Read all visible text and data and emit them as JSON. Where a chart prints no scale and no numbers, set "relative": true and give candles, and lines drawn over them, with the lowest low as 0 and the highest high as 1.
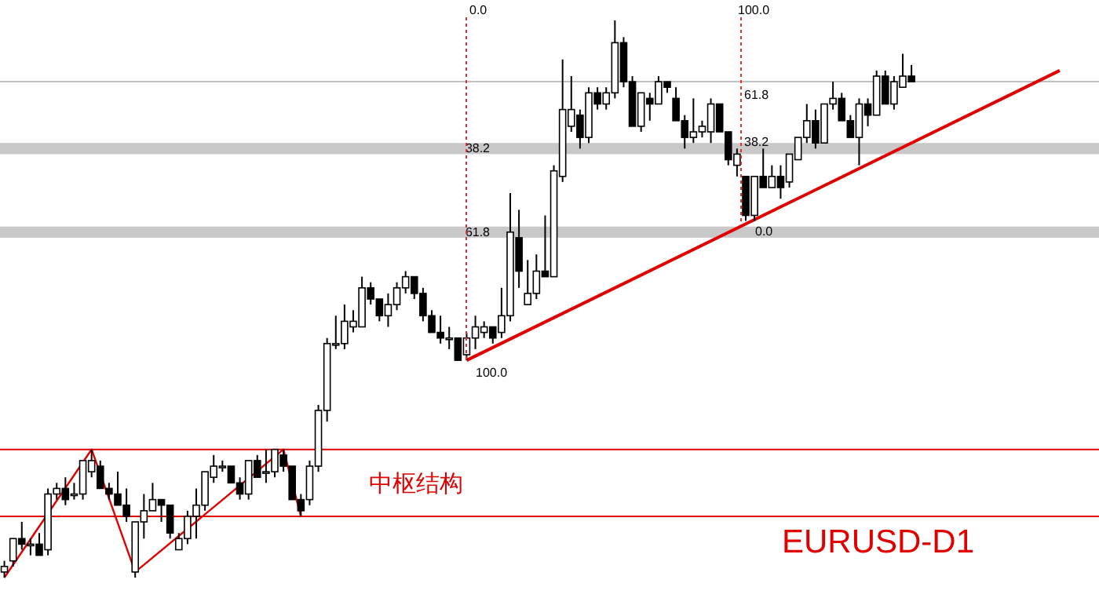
{
  "chart_data": {
    "type": "candlestick",
    "relative": true,
    "tick_labels": false,
    "categories": [
      null,
      null,
      null,
      null,
      null,
      null,
      null,
      null,
      null,
      null,
      null,
      null,
      null,
      null,
      null,
      null,
      null,
      null,
      null,
      null,
      null,
      null,
      null,
      null,
      null,
      null,
      null,
      null,
      null,
      null,
      null,
      null,
      null,
      null,
      null,
      null,
      null,
      null,
      null,
      null,
      null,
      null,
      null,
      null,
      null,
      null,
      null,
      null,
      null,
      null,
      null,
      null,
      null,
      null,
      null,
      null,
      null,
      null,
      null,
      null,
      null,
      null,
      null,
      null,
      null,
      null,
      null,
      null,
      null,
      null,
      null,
      null,
      null,
      null,
      null,
      null,
      null,
      null,
      null,
      null,
      null,
      null,
      null,
      null,
      null,
      null,
      null,
      null,
      null,
      null,
      null,
      null,
      null,
      null,
      null,
      null,
      null,
      null,
      null,
      null,
      null,
      null,
      null,
      null,
      null,
      null,
      null,
      null,
      null,
      null,
      null,
      null,
      null,
      null,
      null,
      null,
      null,
      null,
      null,
      null,
      null,
      null
    ],
    "ohlc": [
      [
        0.01,
        0.03,
        0,
        0.02
      ],
      [
        0.03,
        0.07,
        0.02,
        0.07
      ],
      [
        0.07,
        0.1,
        0.05,
        0.06
      ],
      [
        0.06,
        0.07,
        0.04,
        0.06
      ],
      [
        0.06,
        0.08,
        0.04,
        0.04
      ],
      [
        0.05,
        0.16,
        0.04,
        0.15
      ],
      [
        0.15,
        0.17,
        0.14,
        0.16
      ],
      [
        0.16,
        0.18,
        0.13,
        0.14
      ],
      [
        0.15,
        0.17,
        0.14,
        0.15
      ],
      [
        0.15,
        0.21,
        0.14,
        0.21
      ],
      [
        0.19,
        0.23,
        0.18,
        0.21
      ],
      [
        0.2,
        0.21,
        0.16,
        0.16
      ],
      [
        0.16,
        0.17,
        0.14,
        0.15
      ],
      [
        0.15,
        0.19,
        0.13,
        0.13
      ],
      [
        0.13,
        0.16,
        0.1,
        0.11
      ],
      [
        0.01,
        0.1,
        0,
        0.1
      ],
      [
        0.1,
        0.15,
        0.07,
        0.12
      ],
      [
        0.12,
        0.17,
        0.12,
        0.14
      ],
      [
        0.14,
        0.14,
        0.1,
        0.13
      ],
      [
        0.13,
        0.13,
        0.07,
        0.08
      ],
      [
        0.05,
        0.08,
        0.05,
        0.07
      ],
      [
        0.07,
        0.12,
        0.06,
        0.11
      ],
      [
        0.11,
        0.16,
        0.07,
        0.13
      ],
      [
        0.13,
        0.19,
        0.12,
        0.19
      ],
      [
        0.18,
        0.22,
        0.17,
        0.2
      ],
      [
        0.2,
        0.21,
        0.19,
        0.2
      ],
      [
        0.2,
        0.2,
        0.17,
        0.17
      ],
      [
        0.17,
        0.18,
        0.14,
        0.15
      ],
      [
        0.15,
        0.21,
        0.14,
        0.21
      ],
      [
        0.21,
        0.22,
        0.18,
        0.18
      ],
      [
        0.19,
        0.23,
        0.17,
        0.19
      ],
      [
        0.19,
        0.23,
        0.18,
        0.23
      ],
      [
        0.22,
        0.23,
        0.19,
        0.2
      ],
      [
        0.2,
        0.2,
        0.14,
        0.14
      ],
      [
        0.14,
        0.15,
        0.11,
        0.12
      ],
      [
        0.14,
        0.21,
        0.13,
        0.2
      ],
      [
        0.2,
        0.31,
        0.19,
        0.3
      ],
      [
        0.3,
        0.43,
        0.28,
        0.42
      ],
      [
        0.42,
        0.47,
        0.41,
        0.42
      ],
      [
        0.42,
        0.49,
        0.41,
        0.46
      ],
      [
        0.45,
        0.48,
        0.44,
        0.46
      ],
      [
        0.45,
        0.54,
        0.45,
        0.52
      ],
      [
        0.52,
        0.53,
        0.49,
        0.5
      ],
      [
        0.5,
        0.5,
        0.46,
        0.47
      ],
      [
        0.47,
        0.51,
        0.45,
        0.49
      ],
      [
        0.49,
        0.53,
        0.48,
        0.52
      ],
      [
        0.52,
        0.55,
        0.51,
        0.54
      ],
      [
        0.54,
        0.54,
        0.5,
        0.51
      ],
      [
        0.51,
        0.52,
        0.46,
        0.47
      ],
      [
        0.47,
        0.48,
        0.44,
        0.44
      ],
      [
        0.44,
        0.47,
        0.42,
        0.43
      ],
      [
        0.43,
        0.45,
        0.41,
        0.43
      ],
      [
        0.43,
        0.43,
        0.39,
        0.39
      ],
      [
        0.4,
        0.44,
        0.39,
        0.43
      ],
      [
        0.43,
        0.47,
        0.41,
        0.45
      ],
      [
        0.44,
        0.46,
        0.43,
        0.45
      ],
      [
        0.45,
        0.45,
        0.42,
        0.43
      ],
      [
        0.44,
        0.52,
        0.43,
        0.47
      ],
      [
        0.47,
        0.69,
        0.46,
        0.62
      ],
      [
        0.61,
        0.66,
        0.52,
        0.55
      ],
      [
        0.49,
        0.57,
        0.49,
        0.51
      ],
      [
        0.51,
        0.58,
        0.5,
        0.55
      ],
      [
        0.55,
        0.65,
        0.54,
        0.54
      ],
      [
        0.54,
        0.74,
        0.54,
        0.73
      ],
      [
        0.72,
        0.93,
        0.71,
        0.84
      ],
      [
        0.81,
        0.9,
        0.8,
        0.84
      ],
      [
        0.83,
        0.84,
        0.77,
        0.79
      ],
      [
        0.79,
        0.88,
        0.78,
        0.87
      ],
      [
        0.87,
        0.88,
        0.84,
        0.85
      ],
      [
        0.85,
        0.88,
        0.84,
        0.87
      ],
      [
        0.87,
        1,
        0.86,
        0.96
      ],
      [
        0.96,
        0.97,
        0.88,
        0.89
      ],
      [
        0.89,
        0.9,
        0.81,
        0.81
      ],
      [
        0.81,
        0.87,
        0.8,
        0.87
      ],
      [
        0.86,
        0.87,
        0.82,
        0.85
      ],
      [
        0.85,
        0.9,
        0.85,
        0.89
      ],
      [
        0.89,
        0.89,
        0.87,
        0.88
      ],
      [
        0.86,
        0.88,
        0.82,
        0.82
      ],
      [
        0.82,
        0.83,
        0.77,
        0.79
      ],
      [
        0.79,
        0.86,
        0.78,
        0.8
      ],
      [
        0.8,
        0.82,
        0.79,
        0.81
      ],
      [
        0.8,
        0.86,
        0.78,
        0.85
      ],
      [
        0.85,
        0.85,
        0.8,
        0.8
      ],
      [
        0.8,
        0.8,
        0.74,
        0.75
      ],
      [
        0.74,
        0.77,
        0.72,
        0.76
      ],
      [
        0.72,
        0.72,
        0.64,
        0.65
      ],
      [
        0.65,
        0.72,
        0.64,
        0.72
      ],
      [
        0.72,
        0.77,
        0.7,
        0.7
      ],
      [
        0.7,
        0.74,
        0.7,
        0.72
      ],
      [
        0.72,
        0.74,
        0.68,
        0.7
      ],
      [
        0.71,
        0.76,
        0.7,
        0.76
      ],
      [
        0.75,
        0.79,
        0.75,
        0.79
      ],
      [
        0.79,
        0.85,
        0.78,
        0.82
      ],
      [
        0.82,
        0.84,
        0.77,
        0.78
      ],
      [
        0.78,
        0.85,
        0.78,
        0.85
      ],
      [
        0.85,
        0.89,
        0.84,
        0.86
      ],
      [
        0.86,
        0.87,
        0.82,
        0.82
      ],
      [
        0.82,
        0.83,
        0.79,
        0.79
      ],
      [
        0.79,
        0.86,
        0.74,
        0.85
      ],
      [
        0.85,
        0.86,
        0.81,
        0.83
      ],
      [
        0.83,
        0.91,
        0.83,
        0.9
      ],
      [
        0.9,
        0.91,
        0.85,
        0.85
      ],
      [
        0.85,
        0.9,
        0.84,
        0.89
      ],
      [
        0.88,
        0.94,
        0.88,
        0.9
      ],
      [
        0.9,
        0.92,
        0.89,
        0.89
      ],
      null,
      null,
      null,
      null,
      null,
      null,
      null,
      null,
      null,
      null,
      null,
      null,
      null,
      null,
      null,
      null,
      null
    ],
    "series": [
      {
        "type": "line",
        "color": "#e00000",
        "values": [
          0,
          null,
          null,
          null,
          null,
          null,
          null,
          null,
          null,
          null,
          0.23,
          null,
          null,
          null,
          null,
          0.01,
          null,
          null,
          null,
          null,
          null,
          null,
          null,
          null,
          null,
          null,
          null,
          null,
          null,
          null,
          null,
          null,
          0.23,
          null,
          0.11,
          null,
          null,
          null,
          null,
          null,
          null,
          null,
          null,
          null,
          null,
          null,
          null,
          null,
          null,
          null,
          null,
          null,
          null,
          null,
          null,
          null,
          null,
          null,
          null,
          null,
          null,
          null,
          null,
          null,
          null,
          null,
          null,
          null,
          null,
          null,
          null,
          null,
          null,
          null,
          null,
          null,
          null,
          null,
          null,
          null,
          null,
          null,
          null,
          null,
          null,
          null,
          null,
          null,
          null,
          null,
          null,
          null,
          null,
          null,
          null,
          null,
          null,
          null,
          null,
          null,
          null,
          null,
          null,
          null,
          null,
          null,
          null,
          null,
          null,
          null,
          null,
          null,
          null,
          null,
          null,
          null,
          null,
          null,
          null,
          null,
          null,
          null
        ]
      },
      {
        "type": "line",
        "color": "#e00000",
        "values": [
          null,
          null,
          null,
          null,
          null,
          null,
          null,
          null,
          null,
          null,
          null,
          null,
          null,
          null,
          null,
          null,
          null,
          null,
          null,
          null,
          null,
          null,
          null,
          null,
          null,
          null,
          null,
          null,
          null,
          null,
          null,
          null,
          null,
          null,
          null,
          null,
          null,
          null,
          null,
          null,
          null,
          null,
          null,
          null,
          null,
          null,
          null,
          null,
          null,
          null,
          null,
          null,
          null,
          0.39,
          null,
          null,
          null,
          null,
          null,
          null,
          null,
          null,
          null,
          null,
          null,
          null,
          null,
          null,
          null,
          null,
          null,
          null,
          null,
          null,
          null,
          null,
          null,
          null,
          null,
          null,
          null,
          null,
          null,
          null,
          null,
          null,
          null,
          null,
          null,
          null,
          null,
          null,
          null,
          null,
          null,
          null,
          null,
          null,
          null,
          null,
          null,
          null,
          null,
          null,
          null,
          null,
          null,
          null,
          null,
          null,
          null,
          null,
          null,
          null,
          null,
          null,
          null,
          null,
          null,
          null,
          null,
          0.91
        ]
      }
    ],
    "ref_lines": [
      {
        "axis": "y",
        "value": 0.23,
        "color": "#e00000"
      },
      {
        "axis": "y",
        "value": 0.11,
        "color": "#e00000"
      },
      {
        "axis": "y",
        "value": 0.89,
        "color": "#c0c0c0"
      }
    ],
    "bands": [
      {
        "axis": "y",
        "from": 0.76,
        "to": 0.78,
        "label": "38.2",
        "color": "#c8c8c8"
      },
      {
        "axis": "y",
        "from": 0.61,
        "to": 0.63,
        "label": "61.8",
        "color": "#c8c8c8"
      }
    ],
    "annotations": [
      "中枢结构",
      "EURUSD-D1",
      "0.0",
      "100.0",
      "61.8",
      "38.2",
      "0.0",
      "100.0"
    ]
  }
}
